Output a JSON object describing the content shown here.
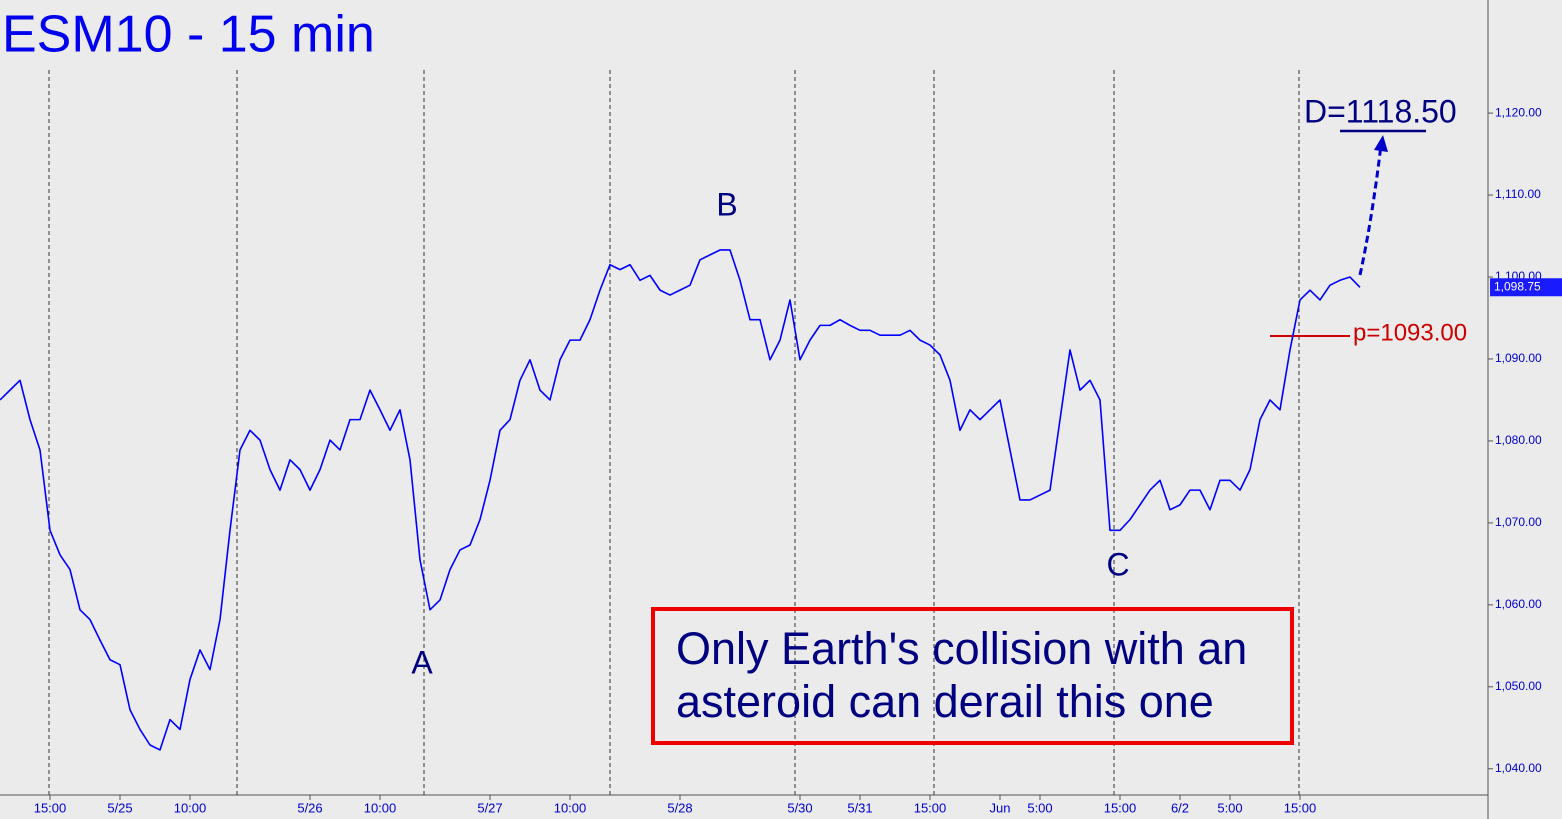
{
  "chart_data": {
    "type": "line",
    "title": "ESM10 - 15 min",
    "color": "#0000ff",
    "categories": [
      null,
      null,
      null,
      null,
      null,
      "15:00",
      null,
      null,
      null,
      null,
      null,
      null,
      "5/25",
      null,
      null,
      null,
      null,
      null,
      null,
      "10:00",
      null,
      null,
      null,
      null,
      null,
      null,
      null,
      null,
      null,
      null,
      null,
      "5/26",
      null,
      null,
      null,
      null,
      null,
      null,
      "10:00",
      null,
      null,
      null,
      null,
      null,
      null,
      null,
      null,
      null,
      null,
      "5/27",
      null,
      null,
      null,
      null,
      null,
      null,
      null,
      "10:00",
      null,
      null,
      null,
      null,
      null,
      null,
      null,
      null,
      null,
      null,
      "5/28",
      null,
      null,
      null,
      null,
      null,
      null,
      null,
      null,
      null,
      null,
      null,
      "5/30",
      null,
      null,
      null,
      null,
      null,
      "5/31",
      null,
      null,
      null,
      null,
      null,
      null,
      "15:00",
      null,
      null,
      null,
      null,
      null,
      null,
      "Jun",
      null,
      null,
      null,
      "5:00",
      null,
      null,
      null,
      null,
      null,
      null,
      null,
      "15:00",
      null,
      null,
      null,
      null,
      null,
      "6/2",
      null,
      null,
      null,
      null,
      "5:00",
      null,
      null,
      null,
      null,
      null,
      null,
      "15:00",
      null,
      null,
      null,
      null,
      null,
      null
    ],
    "values": [
      1085.0,
      1086.2,
      1087.4,
      1082.6,
      1078.9,
      1069.1,
      1066.1,
      1064.3,
      1059.4,
      1058.2,
      1055.7,
      1053.3,
      1052.7,
      1047.2,
      1044.8,
      1042.9,
      1042.3,
      1046.0,
      1044.8,
      1050.9,
      1054.5,
      1052.1,
      1058.2,
      1069.1,
      1078.9,
      1081.3,
      1080.1,
      1076.5,
      1074.0,
      1077.7,
      1076.5,
      1074.0,
      1076.5,
      1080.1,
      1078.9,
      1082.6,
      1082.6,
      1086.2,
      1083.8,
      1081.3,
      1083.8,
      1077.7,
      1065.5,
      1059.4,
      1060.6,
      1064.3,
      1066.7,
      1067.3,
      1070.4,
      1075.2,
      1081.3,
      1082.6,
      1087.4,
      1089.9,
      1086.2,
      1085.0,
      1089.9,
      1092.3,
      1092.3,
      1094.8,
      1098.4,
      1101.5,
      1100.9,
      1101.5,
      1099.6,
      1100.2,
      1098.4,
      1097.8,
      1098.4,
      1099.0,
      1102.1,
      1102.7,
      1103.3,
      1103.3,
      1099.6,
      1094.8,
      1094.8,
      1089.9,
      1092.3,
      1097.2,
      1089.9,
      1092.3,
      1094.1,
      1094.1,
      1094.8,
      1094.1,
      1093.5,
      1093.5,
      1092.9,
      1092.9,
      1092.9,
      1093.5,
      1092.3,
      1091.7,
      1090.5,
      1087.4,
      1081.3,
      1083.8,
      1082.6,
      1083.8,
      1085.0,
      1078.9,
      1072.8,
      1072.8,
      1073.4,
      1074.0,
      1082.6,
      1091.1,
      1086.2,
      1087.4,
      1085.0,
      1069.1,
      1069.1,
      1070.4,
      1072.2,
      1074.0,
      1075.2,
      1071.6,
      1072.2,
      1074.0,
      1074.0,
      1071.6,
      1075.2,
      1075.2,
      1074.0,
      1076.5,
      1082.6,
      1085.0,
      1083.8,
      1091.1,
      1097.2,
      1098.4,
      1097.2,
      1099.0,
      1099.6,
      1100.0,
      1098.75
    ],
    "last_value_label": "1,098.75",
    "ylim": [
      1036.8,
      1133.8
    ],
    "yticks": [
      {
        "value": 1040,
        "label": "1,040.00"
      },
      {
        "value": 1050,
        "label": "1,050.00"
      },
      {
        "value": 1060,
        "label": "1,060.00"
      },
      {
        "value": 1070,
        "label": "1,070.00"
      },
      {
        "value": 1080,
        "label": "1,080.00"
      },
      {
        "value": 1090,
        "label": "1,090.00"
      },
      {
        "value": 1100,
        "label": "1,100.00"
      },
      {
        "value": 1110,
        "label": "1,110.00"
      },
      {
        "value": 1120,
        "label": "1,120.00"
      }
    ],
    "wave_labels": [
      "A",
      "B",
      "C"
    ],
    "target_label": "D=1118.50",
    "pivot_label": "p=1093.00",
    "callout": [
      "Only Earth's collision with an",
      "asteroid can derail this one"
    ]
  }
}
